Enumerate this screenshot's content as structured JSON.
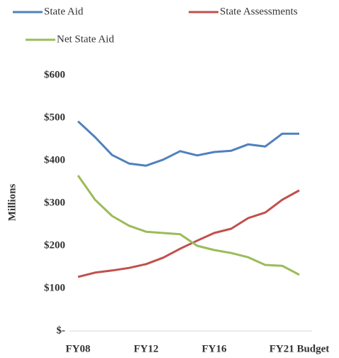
{
  "chart_data": {
    "type": "line",
    "ylabel": "Millions",
    "categories": [
      "FY08",
      null,
      null,
      null,
      "FY12",
      null,
      null,
      null,
      "FY16",
      null,
      null,
      null,
      null,
      "FY21 Budget"
    ],
    "series": [
      {
        "name": "State Aid",
        "color": "#4f81bd",
        "values": [
          492,
          455,
          413,
          393,
          388,
          402,
          422,
          412,
          420,
          423,
          438,
          433,
          463,
          463
        ]
      },
      {
        "name": "State Assessments",
        "color": "#c0504d",
        "values": [
          127,
          137,
          142,
          148,
          157,
          172,
          193,
          212,
          230,
          240,
          265,
          278,
          308,
          330
        ]
      },
      {
        "name": "Net State Aid",
        "color": "#9bbb59",
        "values": [
          365,
          308,
          270,
          247,
          233,
          230,
          227,
          200,
          190,
          183,
          173,
          155,
          153,
          132
        ]
      }
    ],
    "ylim": [
      0,
      600
    ],
    "yticks": [
      {
        "value": 0,
        "label": "$-"
      },
      {
        "value": 100,
        "label": "$100"
      },
      {
        "value": 200,
        "label": "$200"
      },
      {
        "value": 300,
        "label": "$300"
      },
      {
        "value": 400,
        "label": "$400"
      },
      {
        "value": 500,
        "label": "$500"
      },
      {
        "value": 600,
        "label": "$600"
      }
    ]
  }
}
